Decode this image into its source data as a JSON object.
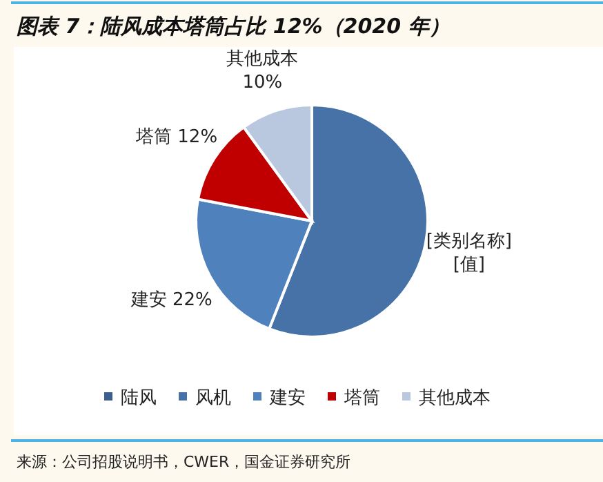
{
  "chart_data": {
    "type": "pie",
    "title": "图表 7：陆风成本塔筒占比 12%（2020 年）",
    "categories": [
      "陆风",
      "风机",
      "建安",
      "塔筒",
      "其他成本"
    ],
    "values": [
      0,
      56,
      22,
      12,
      10
    ],
    "colors": [
      "#3d5f8f",
      "#4672a8",
      "#4f81bd",
      "#c00000",
      "#b9c7df"
    ],
    "value_labels": [
      null,
      "[类别名称]\n[值]",
      "建安 22%",
      "塔筒 12%",
      "其他成本\n10%"
    ],
    "legend": "bottom",
    "annotations": [
      "来源：公司招股说明书，CWER，国金证券研究所"
    ]
  }
}
